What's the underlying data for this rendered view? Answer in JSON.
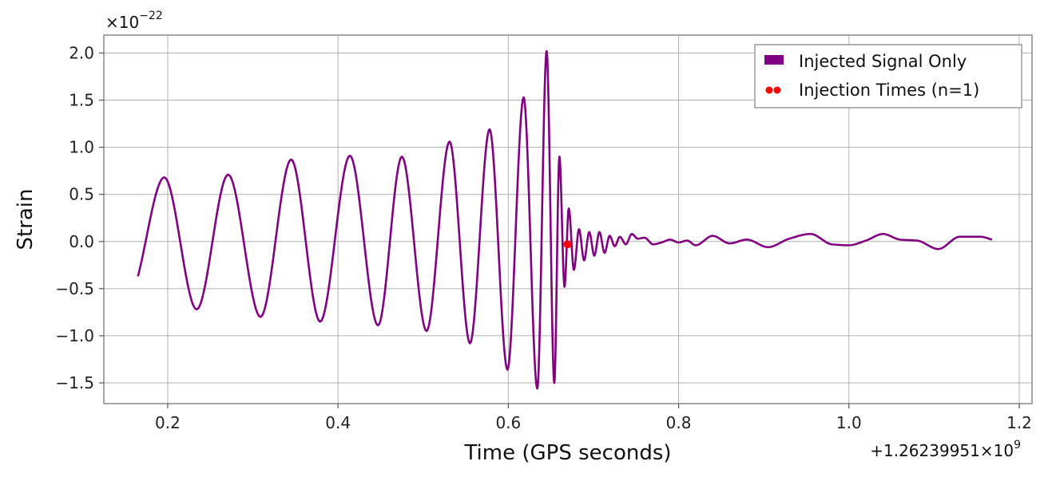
{
  "chart_data": {
    "type": "line",
    "title": "",
    "xlabel": "Time (GPS seconds)",
    "ylabel": "Strain",
    "x_offset_label": "+1.26239951×10",
    "x_offset_exponent": "9",
    "y_multiplier_label": "×10",
    "y_multiplier_exponent": "−22",
    "xlim": [
      0.125,
      1.215
    ],
    "ylim": [
      -1.72,
      2.19
    ],
    "xticks": [
      0.2,
      0.4,
      0.6,
      0.8,
      1.0,
      1.2
    ],
    "xtick_labels": [
      "0.2",
      "0.4",
      "0.6",
      "0.8",
      "1.0",
      "1.2"
    ],
    "yticks": [
      -1.5,
      -1.0,
      -0.5,
      0.0,
      0.5,
      1.0,
      1.5,
      2.0
    ],
    "ytick_labels": [
      "−1.5",
      "−1.0",
      "−0.5",
      "0.0",
      "0.5",
      "1.0",
      "1.5",
      "2.0"
    ],
    "grid": true,
    "legend_position": "top-right",
    "series": [
      {
        "name": "Injected Signal Only",
        "color": "#800080",
        "x": [
          0.165,
          0.196,
          0.234,
          0.271,
          0.309,
          0.345,
          0.379,
          0.414,
          0.447,
          0.475,
          0.504,
          0.531,
          0.555,
          0.578,
          0.599,
          0.618,
          0.634,
          0.645,
          0.654,
          0.66,
          0.666,
          0.671,
          0.677,
          0.683,
          0.689,
          0.695,
          0.701,
          0.707,
          0.713,
          0.719,
          0.725,
          0.731,
          0.738,
          0.745,
          0.752,
          0.76,
          0.77,
          0.78,
          0.79,
          0.8,
          0.81,
          0.82,
          0.84,
          0.86,
          0.88,
          0.905,
          0.93,
          0.955,
          0.98,
          1.0,
          1.02,
          1.04,
          1.06,
          1.08,
          1.105,
          1.13,
          1.155,
          1.168
        ],
        "y": [
          -0.37,
          0.68,
          -0.72,
          0.71,
          -0.8,
          0.87,
          -0.85,
          0.91,
          -0.89,
          0.9,
          -0.95,
          1.06,
          -1.08,
          1.19,
          -1.36,
          1.53,
          -1.56,
          2.02,
          -1.5,
          0.9,
          -0.48,
          0.35,
          -0.3,
          0.13,
          -0.2,
          0.1,
          -0.15,
          0.1,
          -0.12,
          0.06,
          -0.05,
          0.05,
          -0.03,
          0.08,
          0.03,
          0.04,
          -0.03,
          -0.01,
          0.02,
          -0.01,
          0.01,
          -0.04,
          0.06,
          -0.02,
          0.02,
          -0.06,
          0.03,
          0.08,
          -0.03,
          -0.04,
          0.01,
          0.08,
          0.02,
          0.01,
          -0.08,
          0.05,
          0.05,
          0.02
        ]
      },
      {
        "name": "Injection Times (n=1)",
        "color": "#ff0000",
        "marker": "circle",
        "x": [
          0.6695
        ],
        "y": [
          -0.03
        ]
      }
    ]
  }
}
